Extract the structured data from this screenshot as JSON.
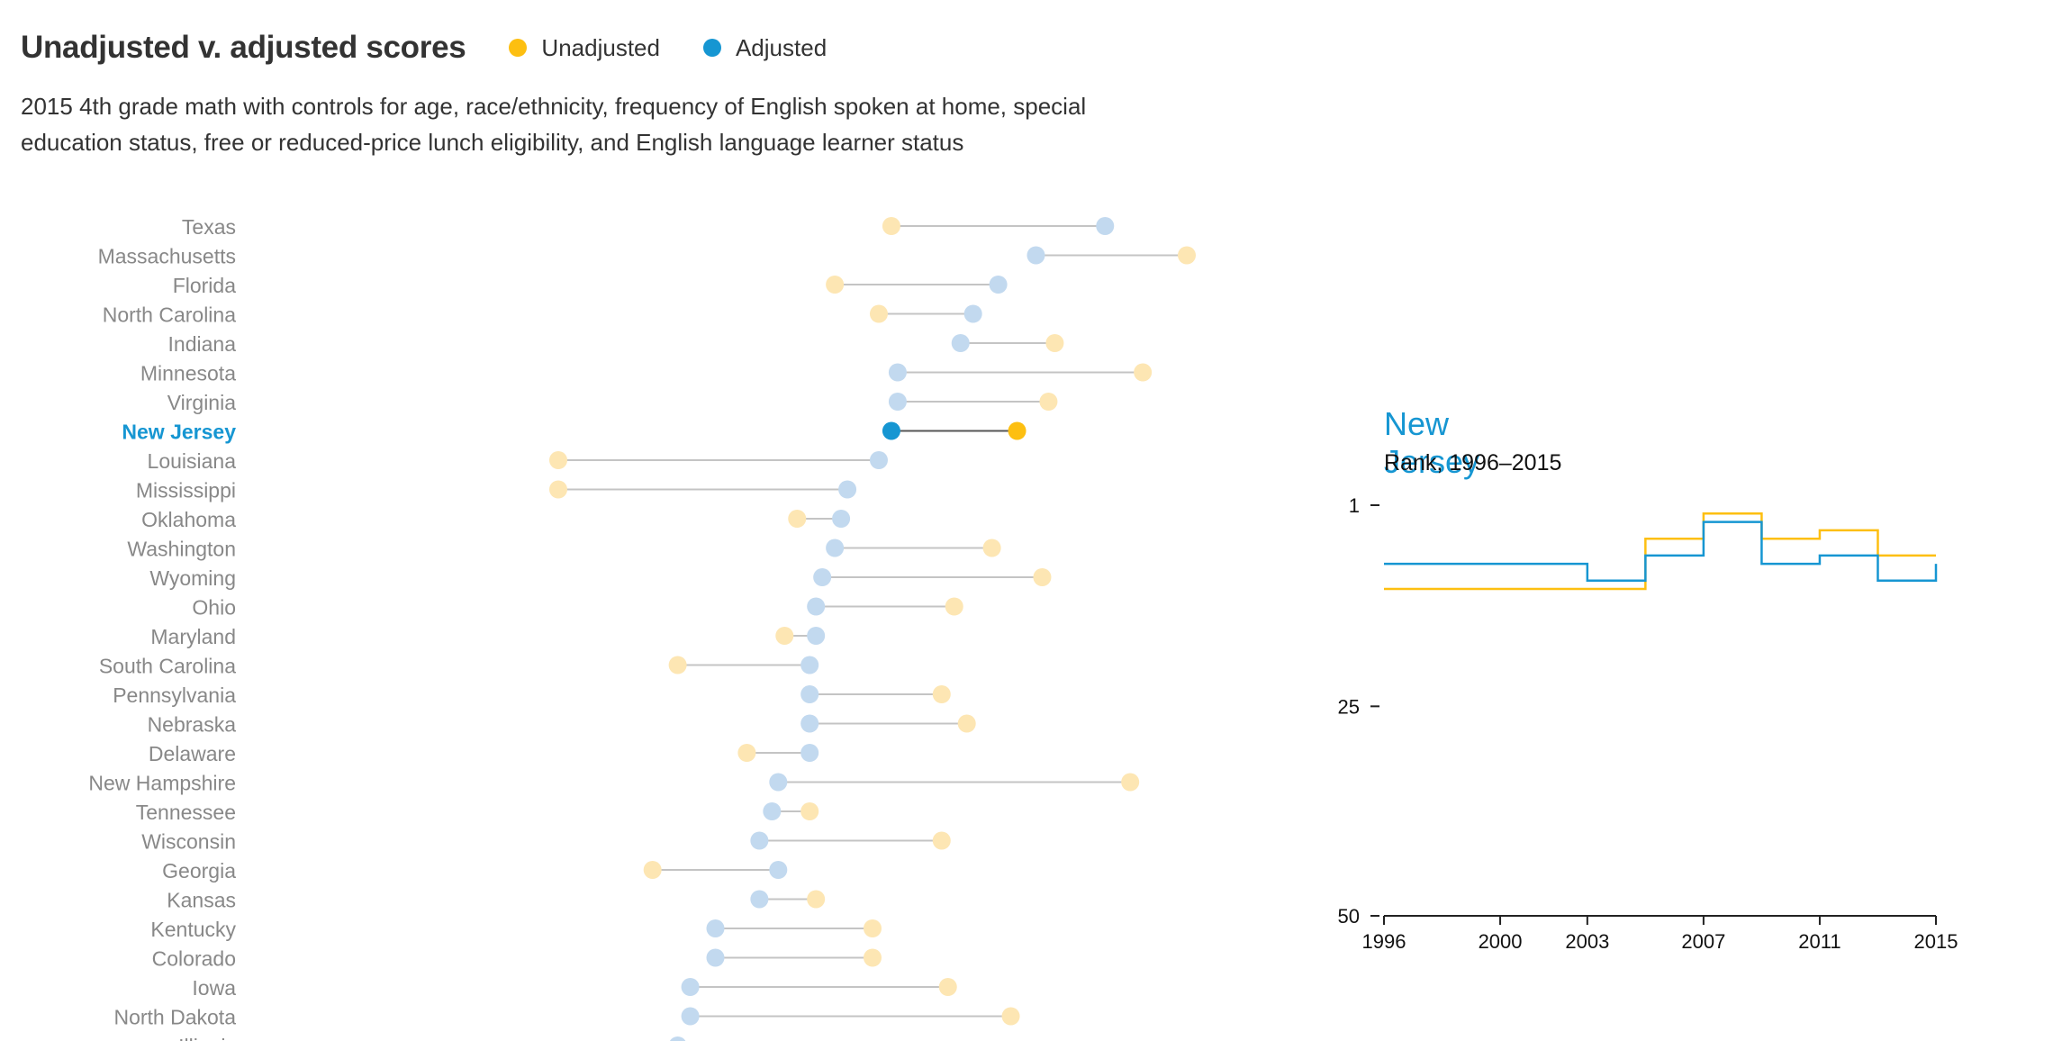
{
  "colors": {
    "unadjusted": "#fdbf11",
    "adjusted": "#1696d2",
    "unadjusted_faded": "#fde6b3",
    "adjusted_faded": "#c2d9ef",
    "connector": "#c4c4c4",
    "connector_highlight": "#555555",
    "state_label": "#888888",
    "highlight_label": "#1696d2"
  },
  "header": {
    "title": "Unadjusted v. adjusted scores",
    "legend": [
      {
        "label": "Unadjusted",
        "color": "#fdbf11"
      },
      {
        "label": "Adjusted",
        "color": "#1696d2"
      }
    ],
    "subtitle": "2015 4th grade math with controls for age, race/ethnicity, frequency of English spoken at home, special education status, free or reduced-price lunch eligibility, and English language learner status"
  },
  "chart_data": [
    {
      "type": "dumbbell",
      "highlight": "New Jersey",
      "rows": [
        {
          "state": "Texas",
          "unadjusted": 0.53,
          "adjusted": 0.87
        },
        {
          "state": "Massachusetts",
          "unadjusted": 1.0,
          "adjusted": 0.76
        },
        {
          "state": "Florida",
          "unadjusted": 0.44,
          "adjusted": 0.7
        },
        {
          "state": "North Carolina",
          "unadjusted": 0.51,
          "adjusted": 0.66
        },
        {
          "state": "Indiana",
          "unadjusted": 0.79,
          "adjusted": 0.64
        },
        {
          "state": "Minnesota",
          "unadjusted": 0.93,
          "adjusted": 0.54
        },
        {
          "state": "Virginia",
          "unadjusted": 0.78,
          "adjusted": 0.54
        },
        {
          "state": "New Jersey",
          "unadjusted": 0.73,
          "adjusted": 0.53
        },
        {
          "state": "Louisiana",
          "unadjusted": 0.0,
          "adjusted": 0.51
        },
        {
          "state": "Mississippi",
          "unadjusted": 0.0,
          "adjusted": 0.46
        },
        {
          "state": "Oklahoma",
          "unadjusted": 0.38,
          "adjusted": 0.45
        },
        {
          "state": "Washington",
          "unadjusted": 0.69,
          "adjusted": 0.44
        },
        {
          "state": "Wyoming",
          "unadjusted": 0.77,
          "adjusted": 0.42
        },
        {
          "state": "Ohio",
          "unadjusted": 0.63,
          "adjusted": 0.41
        },
        {
          "state": "Maryland",
          "unadjusted": 0.36,
          "adjusted": 0.41
        },
        {
          "state": "South Carolina",
          "unadjusted": 0.19,
          "adjusted": 0.4
        },
        {
          "state": "Pennsylvania",
          "unadjusted": 0.61,
          "adjusted": 0.4
        },
        {
          "state": "Nebraska",
          "unadjusted": 0.65,
          "adjusted": 0.4
        },
        {
          "state": "Delaware",
          "unadjusted": 0.3,
          "adjusted": 0.4
        },
        {
          "state": "New Hampshire",
          "unadjusted": 0.91,
          "adjusted": 0.35
        },
        {
          "state": "Tennessee",
          "unadjusted": 0.4,
          "adjusted": 0.34
        },
        {
          "state": "Wisconsin",
          "unadjusted": 0.61,
          "adjusted": 0.32
        },
        {
          "state": "Georgia",
          "unadjusted": 0.15,
          "adjusted": 0.35
        },
        {
          "state": "Kansas",
          "unadjusted": 0.41,
          "adjusted": 0.32
        },
        {
          "state": "Kentucky",
          "unadjusted": 0.5,
          "adjusted": 0.25
        },
        {
          "state": "Colorado",
          "unadjusted": 0.5,
          "adjusted": 0.25
        },
        {
          "state": "Iowa",
          "unadjusted": 0.62,
          "adjusted": 0.21
        },
        {
          "state": "North Dakota",
          "unadjusted": 0.72,
          "adjusted": 0.21
        },
        {
          "state": "Illinois",
          "unadjusted": null,
          "adjusted": 0.19
        }
      ]
    },
    {
      "type": "line",
      "title": "New Jersey",
      "subtitle": "Rank, 1996–2015",
      "y_ticks": [
        "1",
        "25",
        "50"
      ],
      "ylim": [
        1,
        50
      ],
      "y_reversed": true,
      "x_ticks": [
        "1996",
        "2000",
        "2003",
        "2007",
        "2011",
        "2015"
      ],
      "xlim": [
        1996,
        2015
      ],
      "step": "after",
      "series": [
        {
          "name": "Unadjusted",
          "color": "#fdbf11",
          "x": [
            1996,
            2003,
            2005,
            2007,
            2009,
            2011,
            2013,
            2015
          ],
          "y": [
            11,
            11,
            5,
            2,
            5,
            4,
            7,
            7
          ]
        },
        {
          "name": "Adjusted",
          "color": "#1696d2",
          "x": [
            1996,
            2003,
            2005,
            2007,
            2009,
            2011,
            2013,
            2015
          ],
          "y": [
            8,
            10,
            7,
            3,
            8,
            7,
            10,
            8
          ]
        }
      ]
    }
  ]
}
